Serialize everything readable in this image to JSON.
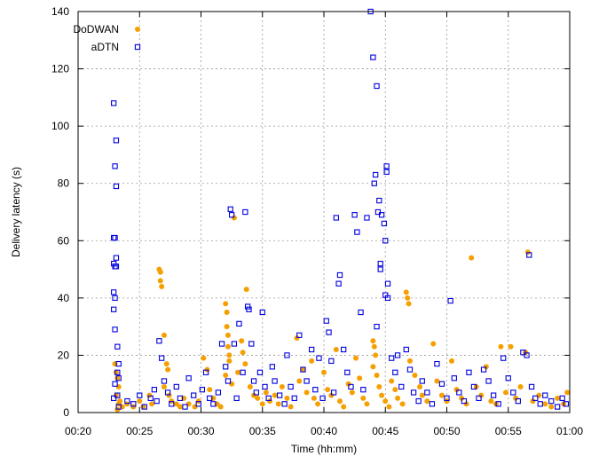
{
  "chart_data": {
    "type": "scatter",
    "title": "",
    "xlabel": "Time (hh:mm)",
    "ylabel": "Delivery latency (s)",
    "x_unit": "minutes",
    "xlim": [
      20,
      60
    ],
    "ylim": [
      0,
      140
    ],
    "x_ticks": [
      20,
      25,
      30,
      35,
      40,
      45,
      50,
      55,
      60
    ],
    "x_tick_labels": [
      "00:20",
      "00:25",
      "00:30",
      "00:35",
      "00:40",
      "00:45",
      "00:50",
      "00:55",
      "01:00"
    ],
    "y_ticks": [
      0,
      20,
      40,
      60,
      80,
      100,
      120,
      140
    ],
    "grid": true,
    "legend": "top-left",
    "series": [
      {
        "name": "DoDWAN",
        "marker": "filled-circle",
        "color": "#f5a000",
        "points": [
          [
            23.0,
            17
          ],
          [
            23.1,
            14
          ],
          [
            23.2,
            12
          ],
          [
            23.3,
            9
          ],
          [
            23.1,
            6
          ],
          [
            23.4,
            4
          ],
          [
            23.3,
            3
          ],
          [
            23.6,
            2
          ],
          [
            23.2,
            1
          ],
          [
            24.0,
            3
          ],
          [
            24.5,
            2
          ],
          [
            25.0,
            4
          ],
          [
            25.3,
            2
          ],
          [
            25.8,
            6
          ],
          [
            26.0,
            3
          ],
          [
            26.6,
            50
          ],
          [
            26.7,
            49
          ],
          [
            26.7,
            46
          ],
          [
            26.8,
            44
          ],
          [
            27.0,
            27
          ],
          [
            27.2,
            17
          ],
          [
            27.3,
            15
          ],
          [
            27.0,
            9
          ],
          [
            27.4,
            6
          ],
          [
            27.6,
            4
          ],
          [
            28.0,
            3
          ],
          [
            28.3,
            2
          ],
          [
            28.6,
            5
          ],
          [
            29.0,
            3
          ],
          [
            29.5,
            2
          ],
          [
            29.8,
            4
          ],
          [
            30.2,
            19
          ],
          [
            30.5,
            15
          ],
          [
            30.7,
            8
          ],
          [
            31.0,
            5
          ],
          [
            31.3,
            3
          ],
          [
            31.6,
            2
          ],
          [
            32.0,
            38
          ],
          [
            32.1,
            35
          ],
          [
            32.1,
            30
          ],
          [
            32.2,
            27
          ],
          [
            32.2,
            23
          ],
          [
            32.3,
            20
          ],
          [
            32.3,
            18
          ],
          [
            32.0,
            13
          ],
          [
            32.5,
            10
          ],
          [
            32.7,
            68
          ],
          [
            33.0,
            14
          ],
          [
            33.3,
            25
          ],
          [
            33.4,
            21
          ],
          [
            33.6,
            17
          ],
          [
            33.7,
            43
          ],
          [
            34.0,
            9
          ],
          [
            34.3,
            6
          ],
          [
            34.6,
            5
          ],
          [
            35.0,
            3
          ],
          [
            35.3,
            7
          ],
          [
            35.6,
            4
          ],
          [
            36.0,
            6
          ],
          [
            36.3,
            3
          ],
          [
            36.6,
            9
          ],
          [
            37.0,
            5
          ],
          [
            37.3,
            2
          ],
          [
            37.8,
            26
          ],
          [
            38.0,
            11
          ],
          [
            38.3,
            15
          ],
          [
            38.6,
            7
          ],
          [
            39.0,
            18
          ],
          [
            39.2,
            5
          ],
          [
            39.5,
            3
          ],
          [
            40.0,
            14
          ],
          [
            40.3,
            8
          ],
          [
            40.6,
            6
          ],
          [
            41.0,
            22
          ],
          [
            41.3,
            4
          ],
          [
            41.6,
            2
          ],
          [
            42.0,
            10
          ],
          [
            42.3,
            7
          ],
          [
            42.6,
            19
          ],
          [
            42.9,
            12
          ],
          [
            43.2,
            5
          ],
          [
            43.5,
            3
          ],
          [
            44.0,
            25
          ],
          [
            44.1,
            23
          ],
          [
            44.2,
            20
          ],
          [
            44.0,
            16
          ],
          [
            44.3,
            13
          ],
          [
            44.5,
            9
          ],
          [
            44.7,
            6
          ],
          [
            45.0,
            4
          ],
          [
            45.3,
            2
          ],
          [
            45.5,
            11
          ],
          [
            45.8,
            8
          ],
          [
            46.0,
            5
          ],
          [
            46.4,
            3
          ],
          [
            46.7,
            42
          ],
          [
            46.8,
            40
          ],
          [
            46.9,
            38
          ],
          [
            47.0,
            18
          ],
          [
            47.4,
            13
          ],
          [
            47.8,
            9
          ],
          [
            48.0,
            6
          ],
          [
            48.4,
            4
          ],
          [
            48.9,
            24
          ],
          [
            49.2,
            11
          ],
          [
            49.6,
            6
          ],
          [
            50.0,
            4
          ],
          [
            50.4,
            18
          ],
          [
            50.8,
            8
          ],
          [
            51.2,
            5
          ],
          [
            51.6,
            3
          ],
          [
            52.0,
            54
          ],
          [
            52.4,
            9
          ],
          [
            52.8,
            6
          ],
          [
            53.2,
            16
          ],
          [
            53.6,
            4
          ],
          [
            54.0,
            3
          ],
          [
            54.4,
            23
          ],
          [
            54.8,
            7
          ],
          [
            55.2,
            23
          ],
          [
            55.6,
            5
          ],
          [
            56.0,
            9
          ],
          [
            56.4,
            21
          ],
          [
            56.6,
            56
          ],
          [
            57.0,
            4
          ],
          [
            57.5,
            6
          ],
          [
            58.0,
            3
          ],
          [
            58.5,
            2
          ],
          [
            59.0,
            5
          ],
          [
            59.5,
            3
          ],
          [
            59.8,
            7
          ]
        ]
      },
      {
        "name": "aDTN",
        "marker": "open-square",
        "color": "#0000e0",
        "points": [
          [
            22.9,
            108
          ],
          [
            23.1,
            95
          ],
          [
            23.0,
            86
          ],
          [
            23.1,
            79
          ],
          [
            22.9,
            61
          ],
          [
            23.0,
            61
          ],
          [
            23.1,
            54
          ],
          [
            22.9,
            52
          ],
          [
            23.0,
            51
          ],
          [
            23.1,
            51
          ],
          [
            22.9,
            42
          ],
          [
            23.0,
            40
          ],
          [
            22.9,
            36
          ],
          [
            23.0,
            29
          ],
          [
            23.2,
            23
          ],
          [
            23.3,
            17
          ],
          [
            23.2,
            14
          ],
          [
            23.3,
            12
          ],
          [
            23.0,
            10
          ],
          [
            23.2,
            6
          ],
          [
            22.9,
            5
          ],
          [
            23.3,
            2
          ],
          [
            24.0,
            4
          ],
          [
            24.5,
            3
          ],
          [
            25.0,
            6
          ],
          [
            25.4,
            2
          ],
          [
            25.9,
            5
          ],
          [
            26.2,
            8
          ],
          [
            26.4,
            4
          ],
          [
            26.6,
            25
          ],
          [
            26.8,
            19
          ],
          [
            27.0,
            11
          ],
          [
            27.3,
            7
          ],
          [
            27.6,
            3
          ],
          [
            28.0,
            9
          ],
          [
            28.3,
            5
          ],
          [
            28.7,
            2
          ],
          [
            29.0,
            12
          ],
          [
            29.4,
            6
          ],
          [
            29.8,
            3
          ],
          [
            30.1,
            8
          ],
          [
            30.4,
            14
          ],
          [
            30.7,
            5
          ],
          [
            31.0,
            3
          ],
          [
            31.4,
            7
          ],
          [
            31.7,
            24
          ],
          [
            32.0,
            16
          ],
          [
            32.2,
            11
          ],
          [
            32.4,
            71
          ],
          [
            32.5,
            69
          ],
          [
            32.7,
            24
          ],
          [
            32.9,
            5
          ],
          [
            33.1,
            31
          ],
          [
            33.4,
            14
          ],
          [
            33.6,
            70
          ],
          [
            33.8,
            37
          ],
          [
            33.9,
            36
          ],
          [
            34.1,
            24
          ],
          [
            34.3,
            11
          ],
          [
            34.5,
            7
          ],
          [
            34.8,
            14
          ],
          [
            35.0,
            35
          ],
          [
            35.2,
            9
          ],
          [
            35.5,
            5
          ],
          [
            35.8,
            16
          ],
          [
            36.0,
            11
          ],
          [
            36.4,
            6
          ],
          [
            36.8,
            3
          ],
          [
            37.0,
            20
          ],
          [
            37.3,
            9
          ],
          [
            37.6,
            5
          ],
          [
            38.0,
            27
          ],
          [
            38.3,
            15
          ],
          [
            38.6,
            11
          ],
          [
            39.0,
            22
          ],
          [
            39.3,
            8
          ],
          [
            39.6,
            19
          ],
          [
            39.9,
            5
          ],
          [
            40.2,
            32
          ],
          [
            40.4,
            28
          ],
          [
            40.6,
            18
          ],
          [
            40.8,
            7
          ],
          [
            41.0,
            68
          ],
          [
            41.2,
            45
          ],
          [
            41.3,
            48
          ],
          [
            41.6,
            22
          ],
          [
            41.9,
            14
          ],
          [
            42.2,
            9
          ],
          [
            42.5,
            69
          ],
          [
            42.7,
            63
          ],
          [
            43.0,
            35
          ],
          [
            43.2,
            8
          ],
          [
            43.5,
            68
          ],
          [
            43.8,
            140
          ],
          [
            44.0,
            124
          ],
          [
            44.1,
            80
          ],
          [
            44.2,
            83
          ],
          [
            44.3,
            114
          ],
          [
            44.4,
            70
          ],
          [
            44.5,
            74
          ],
          [
            44.6,
            52
          ],
          [
            44.6,
            50
          ],
          [
            44.7,
            69
          ],
          [
            44.9,
            66
          ],
          [
            45.0,
            60
          ],
          [
            45.1,
            86
          ],
          [
            45.1,
            84
          ],
          [
            45.2,
            45
          ],
          [
            45.0,
            41
          ],
          [
            45.2,
            40
          ],
          [
            44.3,
            30
          ],
          [
            45.5,
            19
          ],
          [
            45.8,
            14
          ],
          [
            46.0,
            20
          ],
          [
            46.3,
            9
          ],
          [
            46.7,
            22
          ],
          [
            47.0,
            15
          ],
          [
            47.3,
            7
          ],
          [
            47.7,
            4
          ],
          [
            48.0,
            11
          ],
          [
            48.4,
            7
          ],
          [
            48.8,
            3
          ],
          [
            49.2,
            17
          ],
          [
            49.6,
            10
          ],
          [
            50.0,
            5
          ],
          [
            50.3,
            39
          ],
          [
            50.6,
            12
          ],
          [
            51.0,
            7
          ],
          [
            51.4,
            4
          ],
          [
            51.8,
            14
          ],
          [
            52.2,
            9
          ],
          [
            52.6,
            5
          ],
          [
            53.0,
            15
          ],
          [
            53.4,
            11
          ],
          [
            53.8,
            6
          ],
          [
            54.2,
            3
          ],
          [
            54.6,
            19
          ],
          [
            55.0,
            12
          ],
          [
            55.4,
            7
          ],
          [
            55.8,
            4
          ],
          [
            56.2,
            21
          ],
          [
            56.5,
            20
          ],
          [
            56.7,
            55
          ],
          [
            56.9,
            9
          ],
          [
            57.2,
            5
          ],
          [
            57.6,
            3
          ],
          [
            58.0,
            6
          ],
          [
            58.5,
            4
          ],
          [
            59.0,
            2
          ],
          [
            59.4,
            5
          ],
          [
            59.7,
            3
          ]
        ]
      }
    ]
  }
}
